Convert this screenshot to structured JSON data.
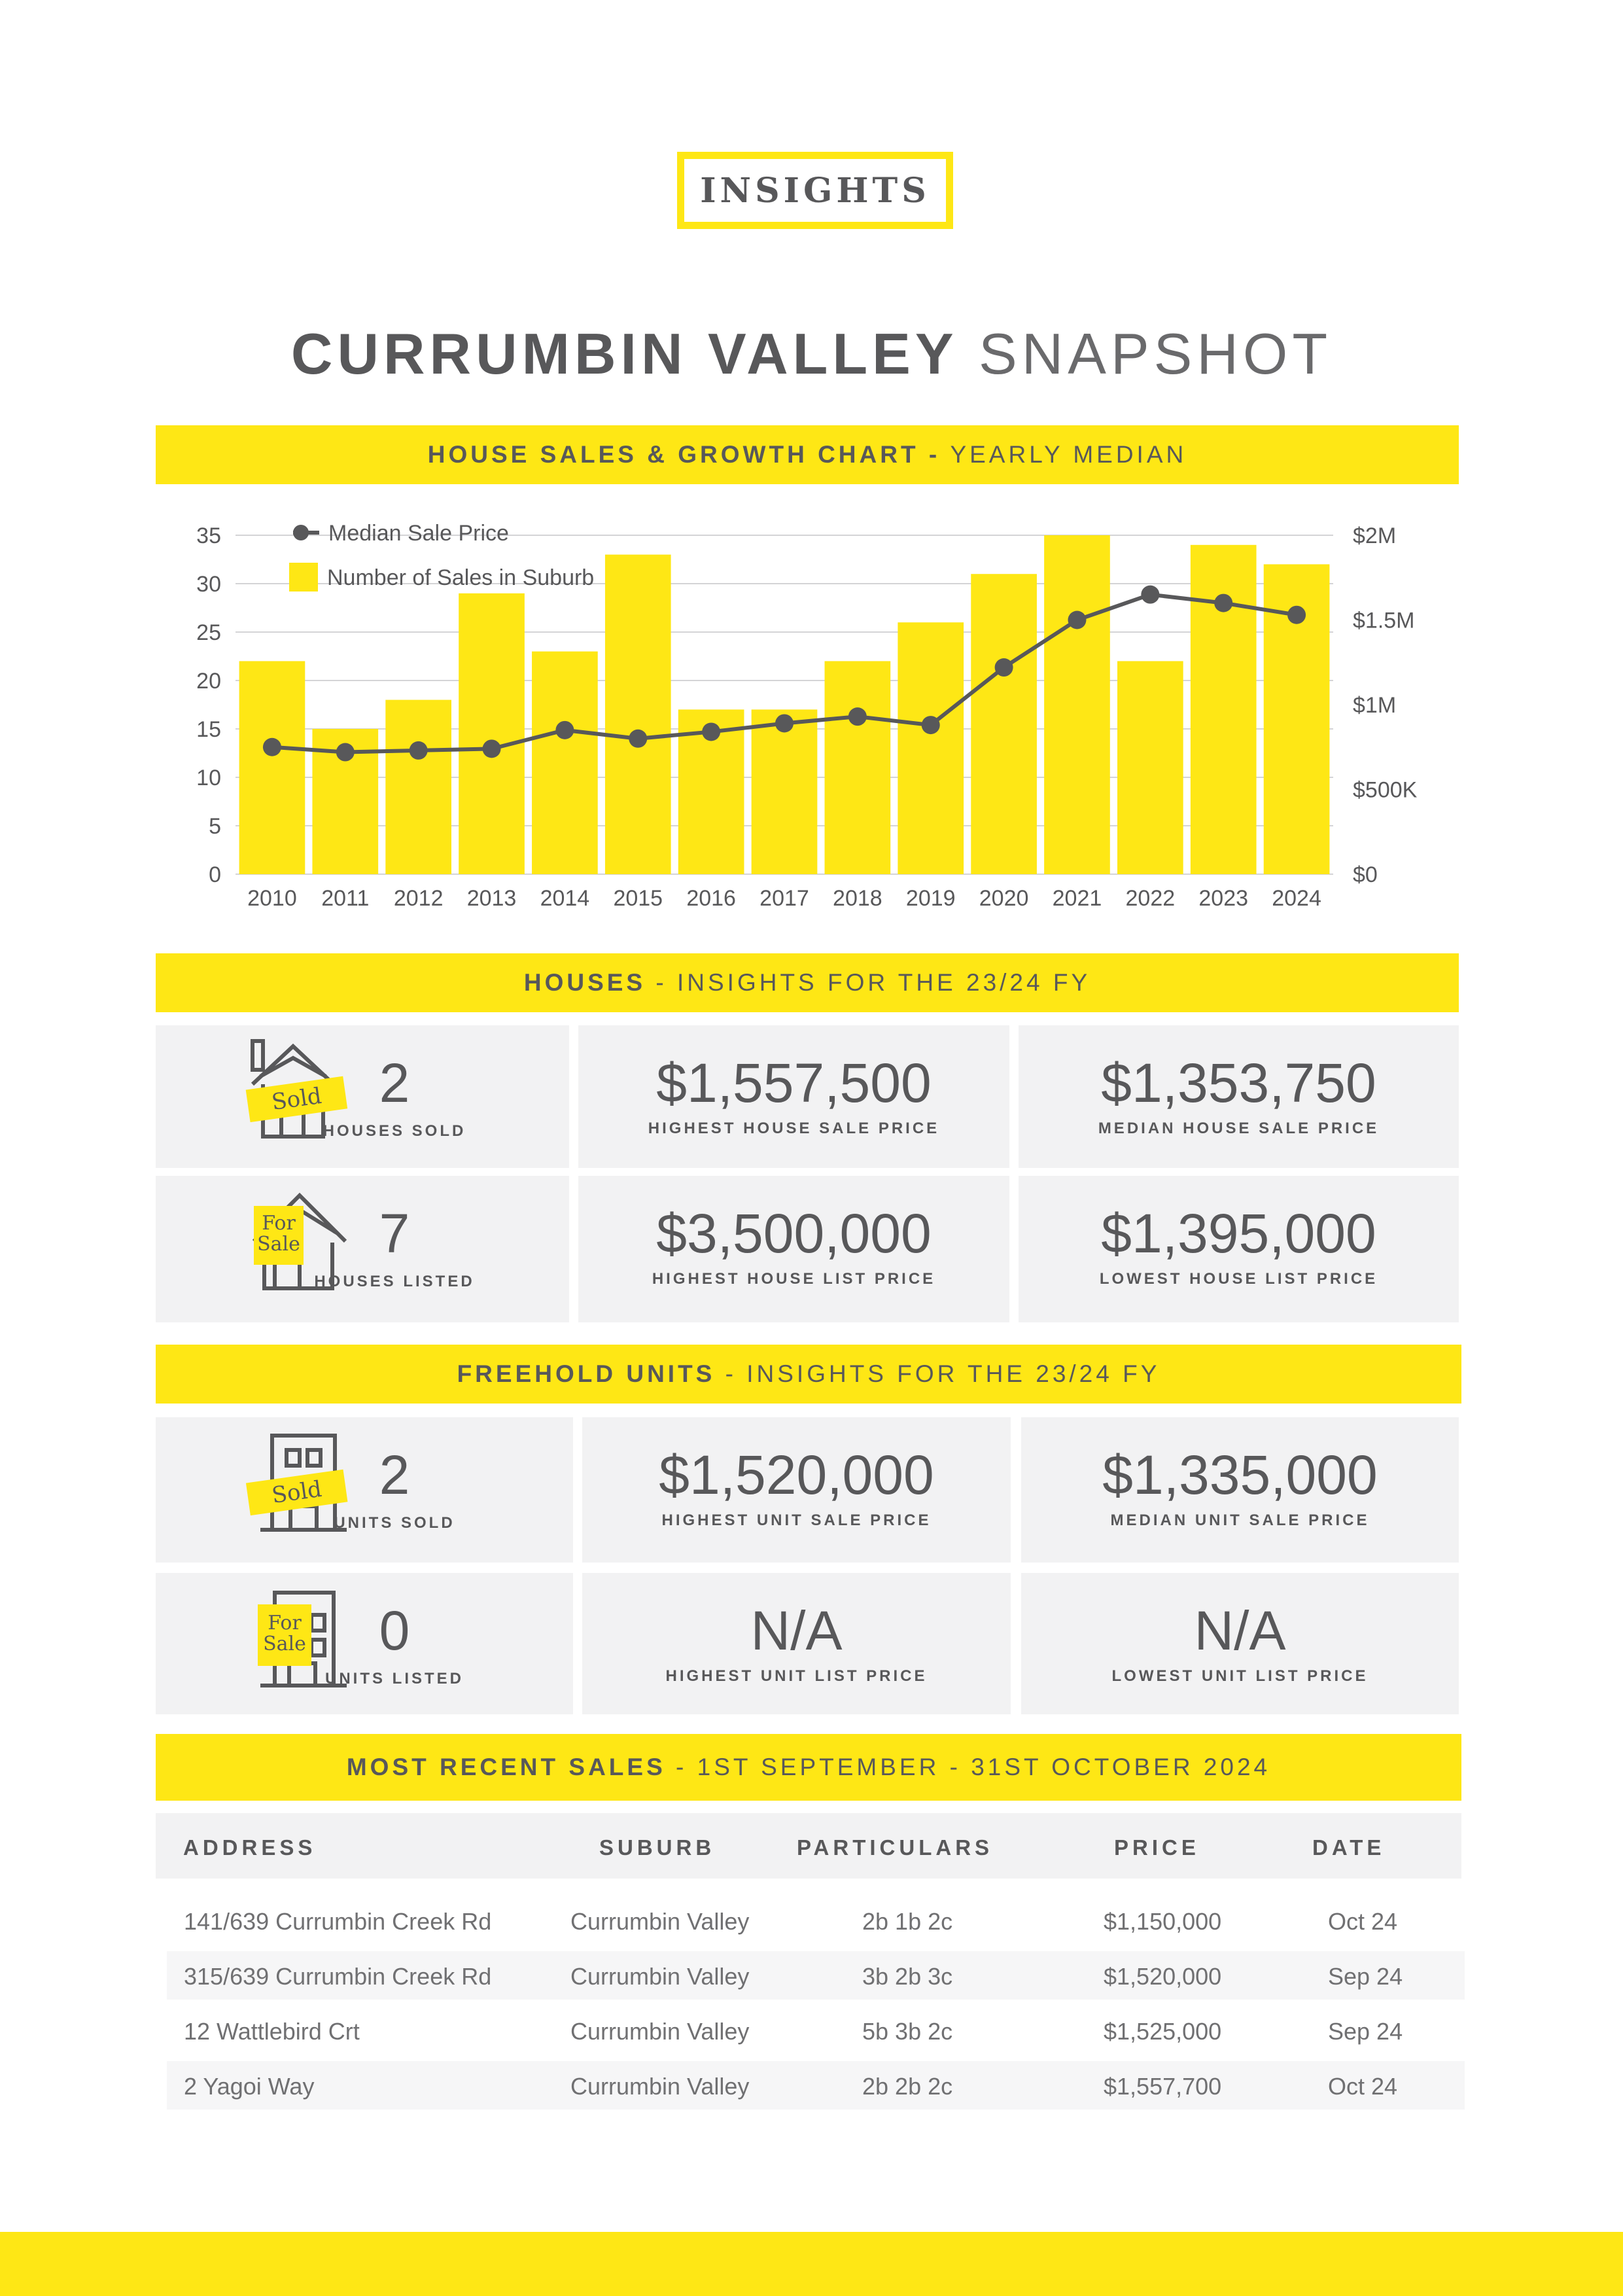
{
  "header": {
    "badge": "INSIGHTS",
    "title_bold": "CURRUMBIN VALLEY",
    "title_light": "SNAPSHOT"
  },
  "chart_section": {
    "band_bold": "HOUSE SALES & GROWTH CHART -",
    "band_light": "YEARLY MEDIAN"
  },
  "chart_data": {
    "type": "bar",
    "title": "",
    "categories": [
      "2010",
      "2011",
      "2012",
      "2013",
      "2014",
      "2015",
      "2016",
      "2017",
      "2018",
      "2019",
      "2020",
      "2021",
      "2022",
      "2023",
      "2024"
    ],
    "series": [
      {
        "name": "Number of Sales in Suburb",
        "type": "bar",
        "axis": "left",
        "color": "#FEE715",
        "values": [
          22,
          15,
          18,
          29,
          23,
          33,
          17,
          17,
          22,
          26,
          31,
          35,
          22,
          34,
          32
        ]
      },
      {
        "name": "Median Sale Price",
        "type": "line",
        "axis": "right",
        "color": "#58585a",
        "values": [
          750000,
          720000,
          730000,
          740000,
          850000,
          800000,
          840000,
          890000,
          930000,
          880000,
          1220000,
          1500000,
          1650000,
          1600000,
          1530000
        ]
      }
    ],
    "y_left": {
      "min": 0,
      "max": 35,
      "ticks": [
        "0",
        "5",
        "10",
        "15",
        "20",
        "25",
        "30",
        "35"
      ]
    },
    "y_right": {
      "min": 0,
      "max": 2000000,
      "ticks": [
        "$0",
        "$500K",
        "$1M",
        "$1.5M",
        "$2M"
      ]
    },
    "grid": true,
    "legend_position": "top-left"
  },
  "houses": {
    "band_bold": "HOUSES",
    "band_light": "- INSIGHTS FOR THE 23/24 FY",
    "sold_icon_text": "Sold",
    "sale_icon_line1": "For",
    "sale_icon_line2": "Sale",
    "tiles": [
      {
        "value": "2",
        "label": "HOUSES SOLD"
      },
      {
        "value": "$1,557,500",
        "label": "HIGHEST HOUSE SALE PRICE"
      },
      {
        "value": "$1,353,750",
        "label": "MEDIAN HOUSE SALE PRICE"
      },
      {
        "value": "7",
        "label": "HOUSES LISTED"
      },
      {
        "value": "$3,500,000",
        "label": "HIGHEST HOUSE LIST PRICE"
      },
      {
        "value": "$1,395,000",
        "label": "LOWEST HOUSE LIST PRICE"
      }
    ]
  },
  "units": {
    "band_bold": "FREEHOLD UNITS",
    "band_light": "- INSIGHTS FOR THE 23/24 FY",
    "sold_icon_text": "Sold",
    "sale_icon_line1": "For",
    "sale_icon_line2": "Sale",
    "tiles": [
      {
        "value": "2",
        "label": "UNITS SOLD"
      },
      {
        "value": "$1,520,000",
        "label": "HIGHEST UNIT SALE PRICE"
      },
      {
        "value": "$1,335,000",
        "label": "MEDIAN UNIT SALE PRICE"
      },
      {
        "value": "0",
        "label": "UNITS LISTED"
      },
      {
        "value": "N/A",
        "label": "HIGHEST UNIT LIST PRICE"
      },
      {
        "value": "N/A",
        "label": "LOWEST UNIT LIST PRICE"
      }
    ]
  },
  "recent_sales": {
    "band_bold": "MOST RECENT SALES",
    "band_light": "- 1ST SEPTEMBER - 31ST OCTOBER 2024",
    "columns": [
      "ADDRESS",
      "SUBURB",
      "PARTICULARS",
      "PRICE",
      "DATE"
    ],
    "rows": [
      [
        "141/639 Currumbin Creek Rd",
        "Currumbin Valley",
        "2b 1b 2c",
        "$1,150,000",
        "Oct 24"
      ],
      [
        "315/639 Currumbin Creek Rd",
        "Currumbin Valley",
        "3b 2b 3c",
        "$1,520,000",
        "Sep 24"
      ],
      [
        "12 Wattlebird Crt",
        "Currumbin Valley",
        "5b 3b 2c",
        "$1,525,000",
        "Sep 24"
      ],
      [
        "2 Yagoi Way",
        "Currumbin Valley",
        "2b 2b 2c",
        "$1,557,700",
        "Oct 24"
      ]
    ]
  },
  "colors": {
    "accent": "#FEE715",
    "text": "#58585a",
    "tile_bg": "#f2f2f3"
  }
}
